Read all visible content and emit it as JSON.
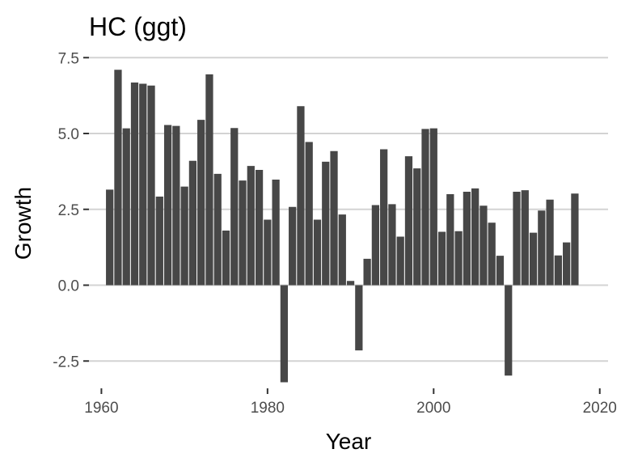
{
  "chart_data": {
    "type": "bar",
    "title": "HC (ggt)",
    "xlabel": "Year",
    "ylabel": "Growth",
    "x_ticks": [
      "1960",
      "1980",
      "2000",
      "2020"
    ],
    "y_ticks": [
      "-2.5",
      "0.0",
      "2.5",
      "5.0",
      "7.5"
    ],
    "xlim": [
      1958.5,
      2021
    ],
    "ylim": [
      -3.4,
      7.8
    ],
    "grid": "horizontal major",
    "legend": "none",
    "bar_color": "#474747",
    "x": [
      1961,
      1962,
      1963,
      1964,
      1965,
      1966,
      1967,
      1968,
      1969,
      1970,
      1971,
      1972,
      1973,
      1974,
      1975,
      1976,
      1977,
      1978,
      1979,
      1980,
      1981,
      1982,
      1983,
      1984,
      1985,
      1986,
      1987,
      1988,
      1989,
      1990,
      1991,
      1992,
      1993,
      1994,
      1995,
      1996,
      1997,
      1998,
      1999,
      2000,
      2001,
      2002,
      2003,
      2004,
      2005,
      2006,
      2007,
      2008,
      2009,
      2010,
      2011,
      2012,
      2013,
      2014,
      2015,
      2016,
      2017
    ],
    "values": [
      3.15,
      7.1,
      5.17,
      6.68,
      6.64,
      6.58,
      2.92,
      5.28,
      5.25,
      3.25,
      4.1,
      5.45,
      6.95,
      3.67,
      1.8,
      5.18,
      3.45,
      3.93,
      3.8,
      2.16,
      3.48,
      -3.2,
      2.58,
      5.9,
      4.72,
      2.16,
      4.07,
      4.42,
      2.33,
      0.14,
      -2.15,
      0.87,
      2.64,
      4.48,
      2.67,
      1.6,
      4.25,
      3.85,
      5.15,
      5.17,
      1.76,
      3.0,
      1.78,
      3.08,
      3.19,
      2.62,
      2.06,
      0.97,
      -2.98,
      3.08,
      3.13,
      1.73,
      2.46,
      2.82,
      0.98,
      1.41,
      3.02
    ]
  }
}
